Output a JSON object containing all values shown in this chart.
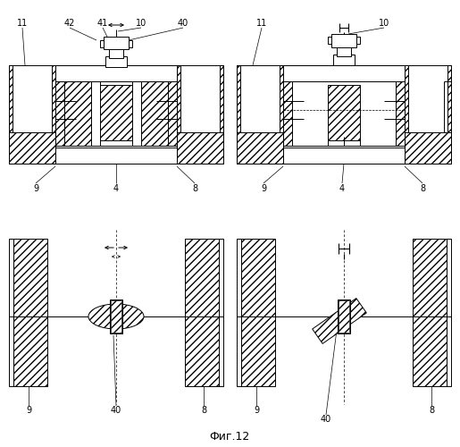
{
  "title": "Фиг.12",
  "bg": "#ffffff",
  "fig_width": 5.15,
  "fig_height": 5.0,
  "dpi": 100
}
